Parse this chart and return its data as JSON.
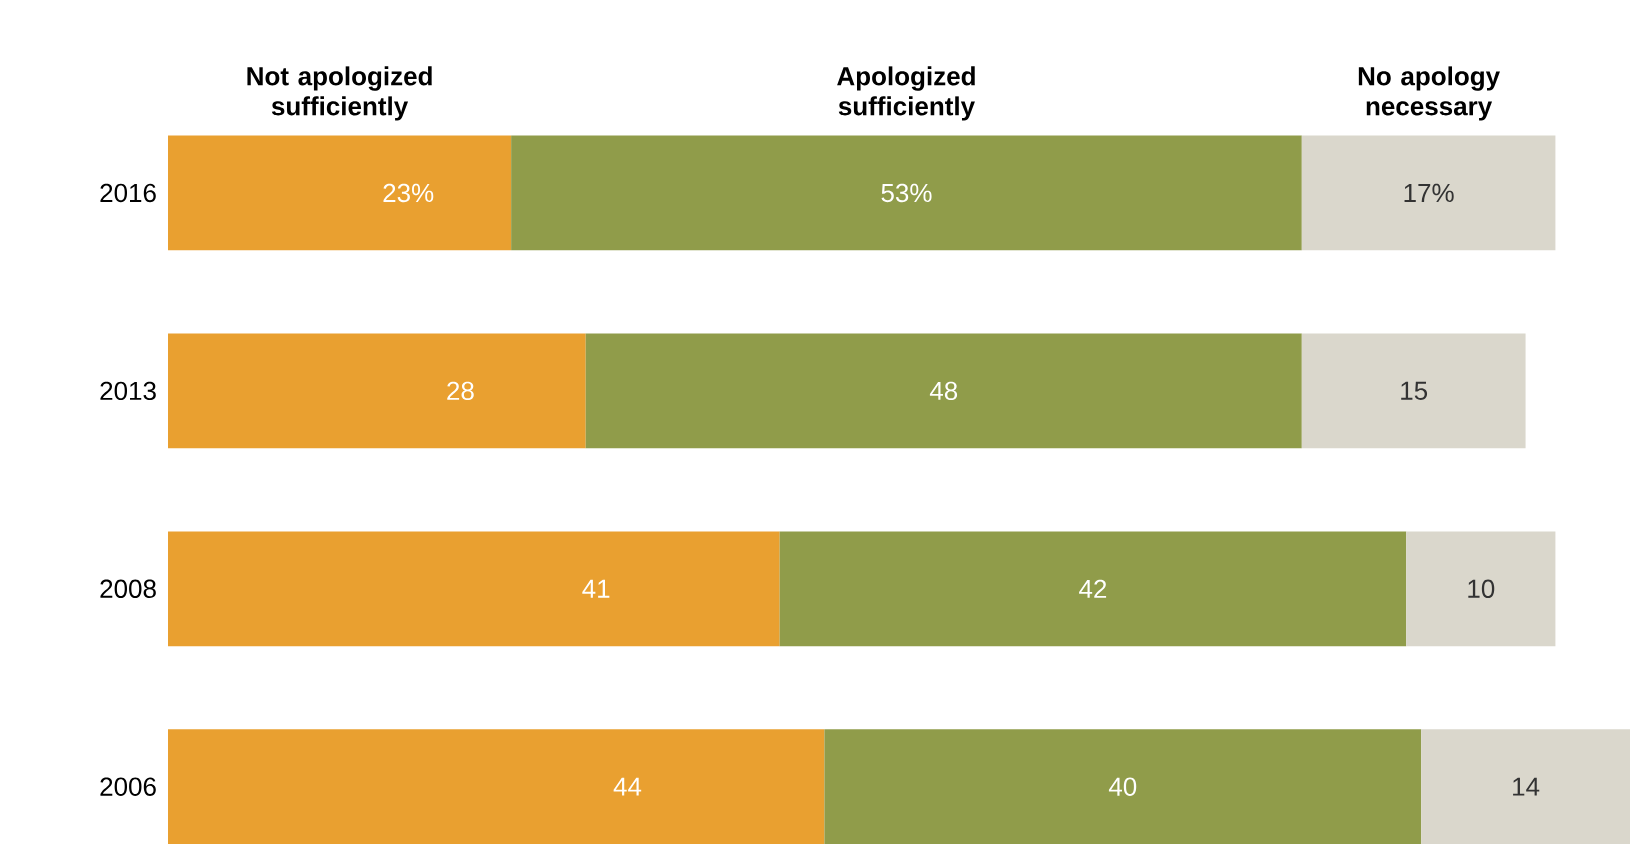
{
  "chart_data": {
    "type": "bar",
    "orientation": "horizontal",
    "stacked": true,
    "categories": [
      "2016",
      "2013",
      "2008",
      "2006"
    ],
    "series": [
      {
        "name": "Not apologized sufficiently",
        "color": "#e9a030",
        "values": [
          23,
          28,
          41,
          44
        ],
        "value_labels": [
          "23%",
          "28",
          "41",
          "44"
        ]
      },
      {
        "name": "Apologized sufficiently",
        "color": "#909c4a",
        "values": [
          53,
          48,
          42,
          40
        ],
        "value_labels": [
          "53%",
          "48",
          "42",
          "40"
        ]
      },
      {
        "name": "No apology necessary",
        "color": "#dad7cc",
        "values": [
          17,
          15,
          10,
          14
        ],
        "value_labels": [
          "17%",
          "15",
          "10",
          "14"
        ]
      }
    ]
  }
}
